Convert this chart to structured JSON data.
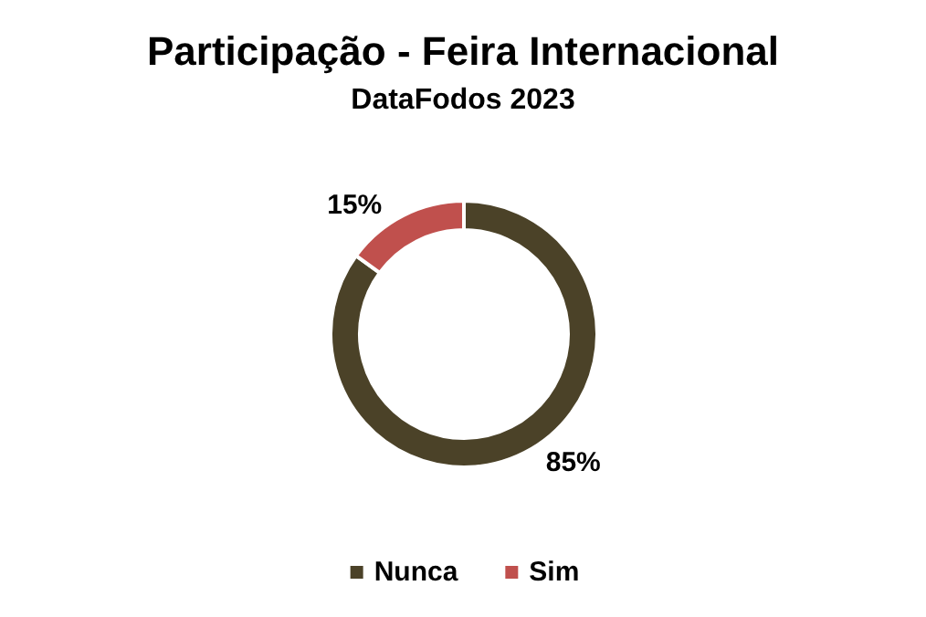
{
  "chart_data": {
    "type": "donut",
    "title": "Participação - Feira Internacional",
    "subtitle": "DataFodos 2023",
    "categories": [
      "Nunca",
      "Sim"
    ],
    "values": [
      85,
      15
    ],
    "colors": [
      "#4b4228",
      "#c0504d"
    ],
    "legend": "bottom",
    "value_labels": [
      "85%",
      "15%"
    ]
  }
}
